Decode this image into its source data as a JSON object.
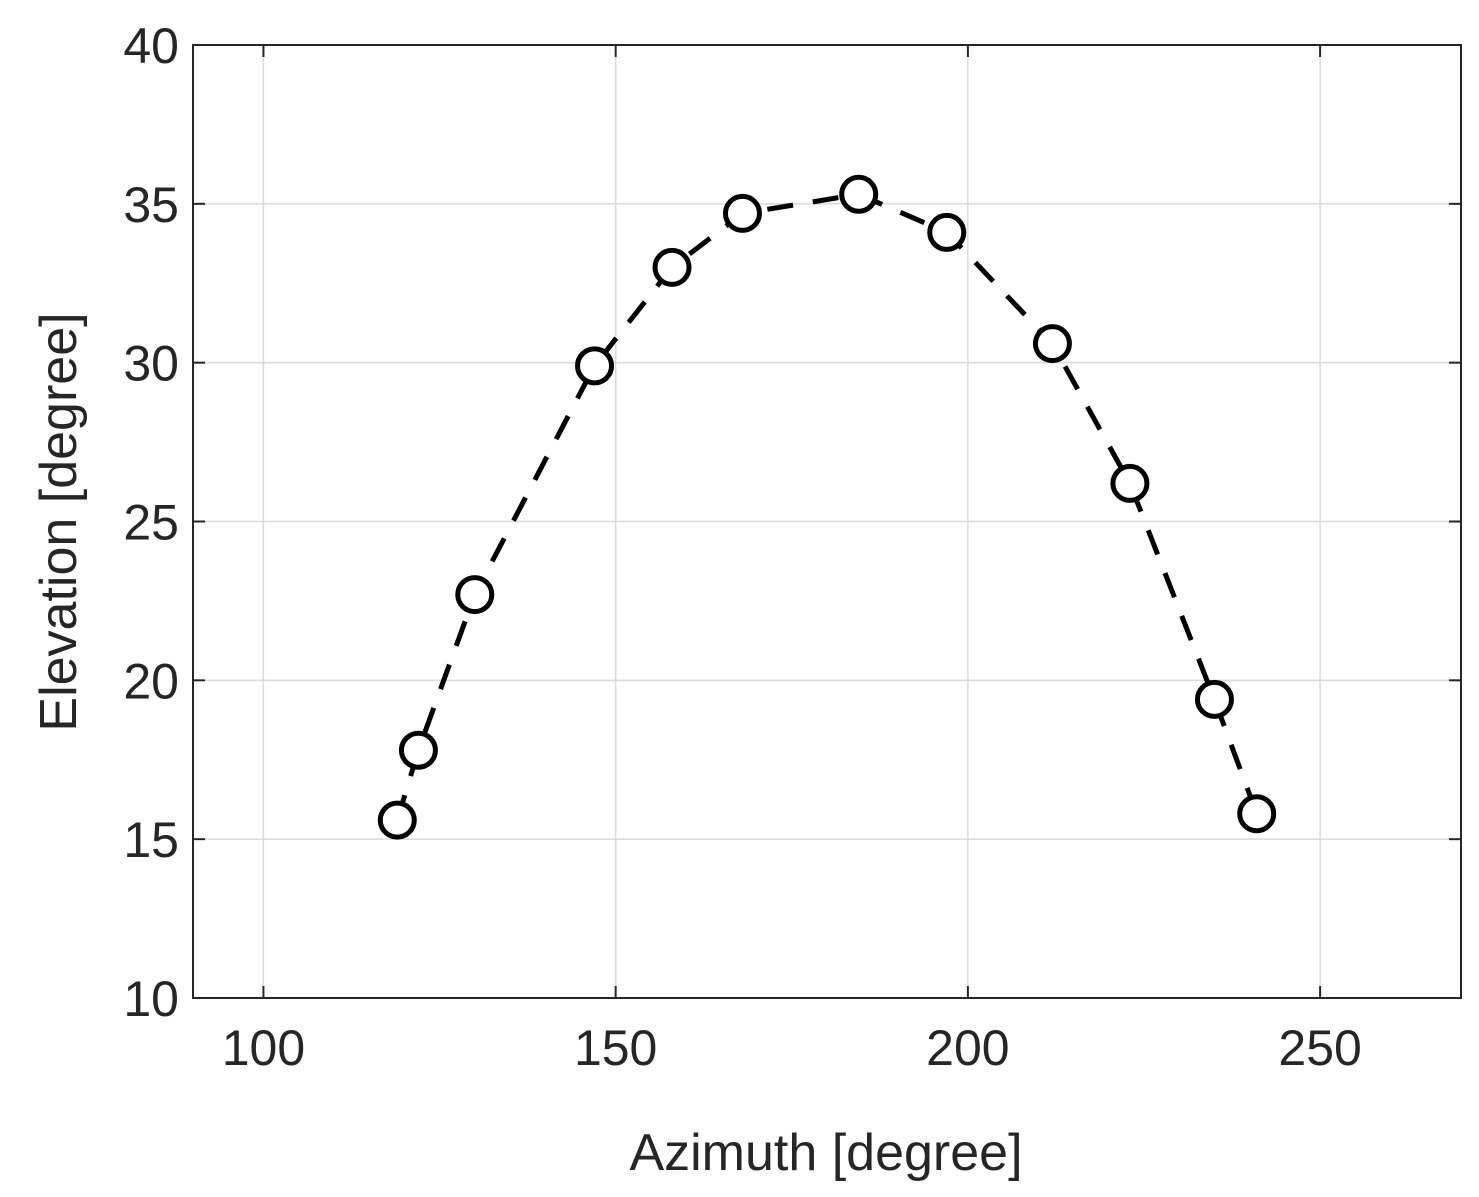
{
  "chart_data": {
    "type": "line",
    "xlabel": "Azimuth [degree]",
    "ylabel": "Elevation [degree]",
    "xlim": [
      90,
      270
    ],
    "ylim": [
      10,
      40
    ],
    "xticks": [
      100,
      150,
      200,
      250
    ],
    "yticks": [
      10,
      15,
      20,
      25,
      30,
      35,
      40
    ],
    "xtick_labels": [
      "100",
      "150",
      "200",
      "250"
    ],
    "ytick_labels": [
      "10",
      "15",
      "20",
      "25",
      "30",
      "35",
      "40"
    ],
    "grid": true,
    "series": [
      {
        "line_style": "dashed",
        "marker": "open-circle",
        "color": "#000000",
        "x": [
          119,
          122,
          130,
          147,
          158,
          168,
          184.5,
          197,
          212,
          223,
          235,
          241
        ],
        "y": [
          15.6,
          17.8,
          22.7,
          29.9,
          33.0,
          34.7,
          35.3,
          34.1,
          30.6,
          26.2,
          19.4,
          15.8
        ]
      }
    ]
  }
}
